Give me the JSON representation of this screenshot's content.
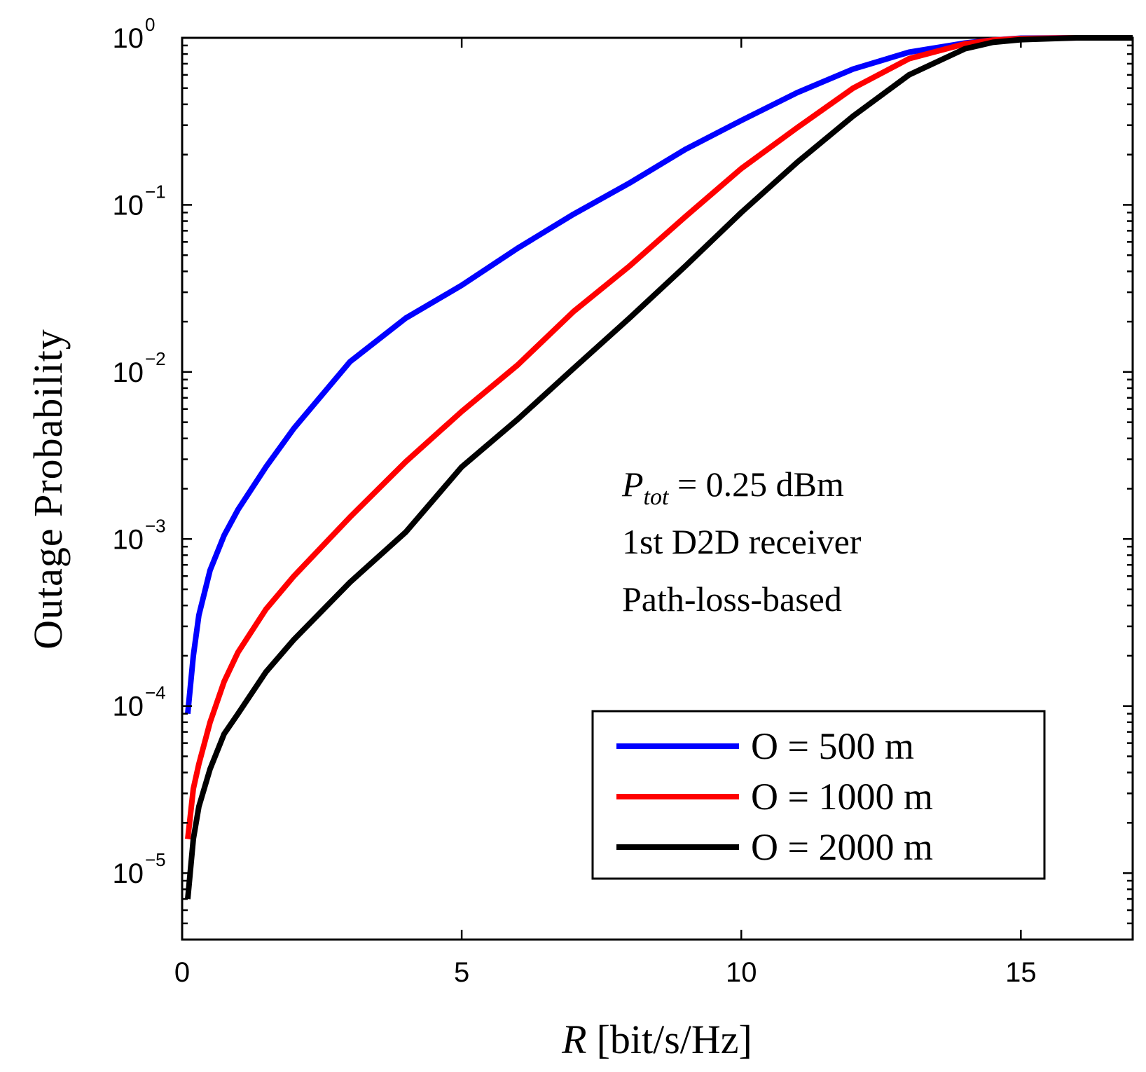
{
  "chart_data": {
    "type": "line",
    "xlabel_var": "R",
    "xlabel_unit": "[bit/s/Hz]",
    "ylabel": "Outage Probability",
    "xlim": [
      0,
      17
    ],
    "ylim": [
      4e-06,
      1
    ],
    "yscale": "log",
    "xticks": [
      0,
      5,
      10,
      15
    ],
    "xtick_labels": [
      "0",
      "5",
      "10",
      "15"
    ],
    "yticks": [
      1e-05,
      0.0001,
      0.001,
      0.01,
      0.1,
      1
    ],
    "ytick_base": "10",
    "ytick_exponents": [
      "−5",
      "−4",
      "−3",
      "−2",
      "−1",
      "0"
    ],
    "grid": false,
    "legend_position": "bottom-right",
    "annotation": {
      "line1_symbol": "P",
      "line1_subscript": "tot",
      "line1_rest": " = 0.25 dBm",
      "line2": "1st D2D receiver",
      "line3": "Path-loss-based"
    },
    "series": [
      {
        "name": "O = 500 m",
        "color": "#0000ff",
        "x": [
          0.1,
          0.2,
          0.3,
          0.5,
          0.75,
          1,
          1.5,
          2,
          3,
          4,
          5,
          6,
          7,
          8,
          9,
          10,
          11,
          12,
          13,
          14,
          14.5,
          15,
          16,
          17
        ],
        "y": [
          9e-05,
          0.0002,
          0.00035,
          0.00065,
          0.00105,
          0.0015,
          0.0027,
          0.0046,
          0.0115,
          0.021,
          0.033,
          0.055,
          0.088,
          0.135,
          0.215,
          0.32,
          0.47,
          0.65,
          0.82,
          0.93,
          0.97,
          0.995,
          1,
          1
        ]
      },
      {
        "name": "O = 1000 m",
        "color": "#ff0000",
        "x": [
          0.1,
          0.2,
          0.3,
          0.5,
          0.75,
          1,
          1.5,
          2,
          3,
          4,
          5,
          6,
          7,
          8,
          9,
          10,
          11,
          12,
          13,
          14,
          14.5,
          15,
          16,
          17
        ],
        "y": [
          1.6e-05,
          3.2e-05,
          4.5e-05,
          8e-05,
          0.00014,
          0.00021,
          0.00038,
          0.0006,
          0.00135,
          0.0029,
          0.0058,
          0.011,
          0.023,
          0.043,
          0.085,
          0.165,
          0.29,
          0.5,
          0.75,
          0.92,
          0.97,
          0.99,
          1,
          1
        ]
      },
      {
        "name": "O = 2000 m",
        "color": "#000000",
        "x": [
          0.1,
          0.2,
          0.3,
          0.5,
          0.75,
          1,
          1.5,
          2,
          3,
          4,
          5,
          6,
          7,
          8,
          9,
          10,
          11,
          12,
          13,
          14,
          14.5,
          15,
          16,
          17
        ],
        "y": [
          7e-06,
          1.6e-05,
          2.5e-05,
          4.2e-05,
          6.8e-05,
          9e-05,
          0.00016,
          0.00025,
          0.00055,
          0.0011,
          0.0027,
          0.0052,
          0.0105,
          0.021,
          0.043,
          0.09,
          0.18,
          0.34,
          0.6,
          0.86,
          0.94,
          0.975,
          1,
          1
        ]
      }
    ]
  }
}
